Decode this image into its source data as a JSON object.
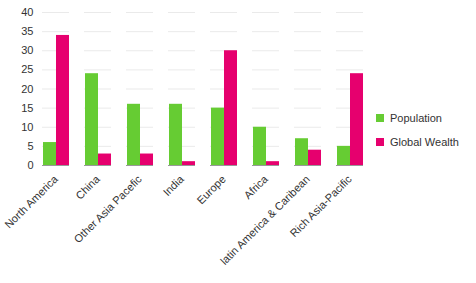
{
  "chart_data": {
    "type": "bar",
    "categories": [
      "North America",
      "China",
      "Other Asia Pacefic",
      "India",
      "Europe",
      "Africa",
      "latin America & Caribean",
      "Rich Asia-Pacific"
    ],
    "series": [
      {
        "name": "Population",
        "color": "#66cc33",
        "values": [
          6,
          24,
          16,
          16,
          15,
          10,
          7,
          5
        ]
      },
      {
        "name": "Global Wealth",
        "color": "#e6006e",
        "values": [
          34,
          3,
          3,
          1,
          30,
          1,
          4,
          24
        ]
      }
    ],
    "ylim": [
      0,
      40
    ],
    "yticks": [
      0,
      5,
      10,
      15,
      20,
      25,
      30,
      35,
      40
    ],
    "grid": true,
    "legend": "right"
  }
}
